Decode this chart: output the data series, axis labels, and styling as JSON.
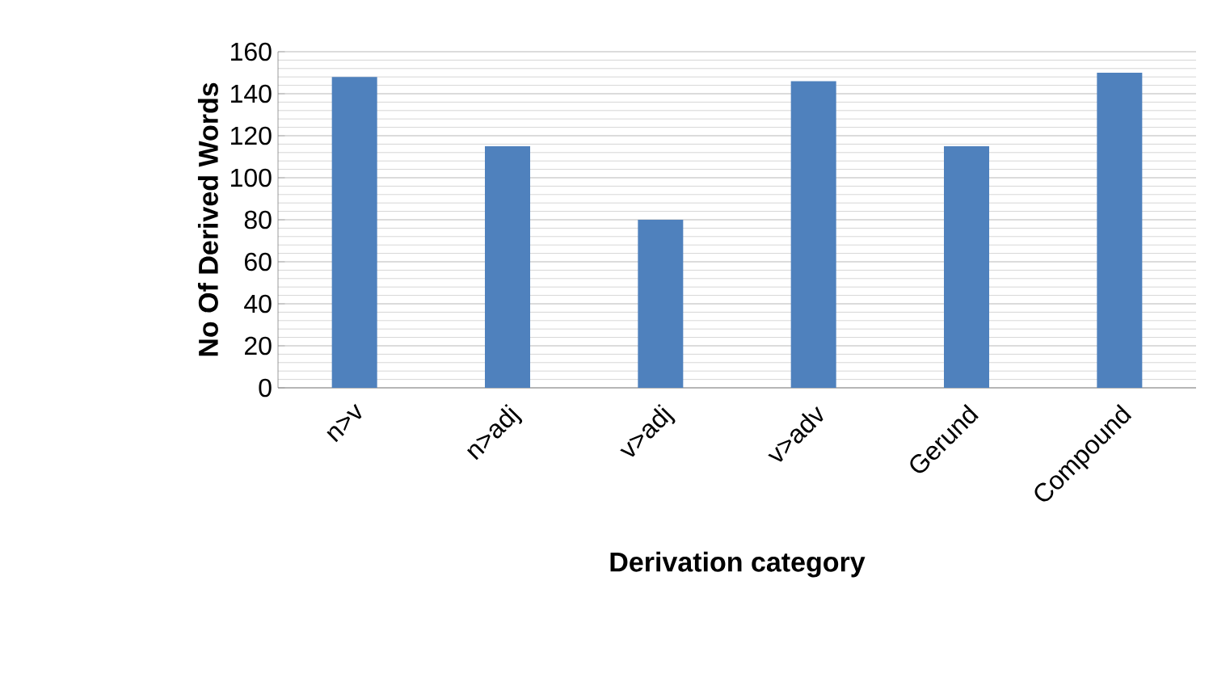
{
  "chart_data": {
    "type": "bar",
    "xlabel": "Derivation category",
    "ylabel": "No Of Derived Words",
    "categories": [
      "n>v",
      "n>adj",
      "v>adj",
      "v>adv",
      "Gerund",
      "Compound"
    ],
    "values": [
      148,
      115,
      80,
      146,
      115,
      150
    ],
    "color": "#4f81bd",
    "ylim": [
      0,
      160
    ],
    "yticks": [
      0,
      20,
      40,
      60,
      80,
      100,
      120,
      140,
      160
    ],
    "grid": "y"
  }
}
